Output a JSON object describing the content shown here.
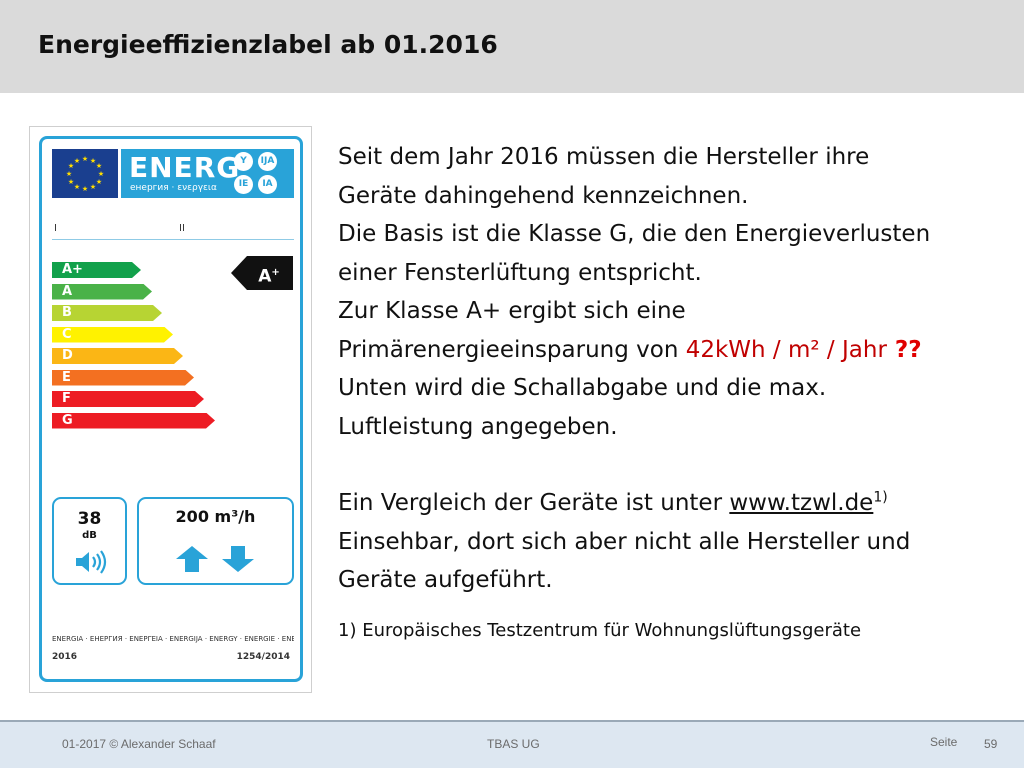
{
  "slide": {
    "title": "Energieeffizienzlabel ab 01.2016"
  },
  "label": {
    "energ_word": "ENERG",
    "energ_sub": "енергия · ενεργεια",
    "lang_codes": [
      "Y",
      "IJA",
      "IE",
      "IA"
    ],
    "supplier_i": "I",
    "supplier_ii": "II",
    "classes": [
      "A+",
      "A",
      "B",
      "C",
      "D",
      "E",
      "F",
      "G"
    ],
    "class_colors": [
      "#12a14b",
      "#4ab248",
      "#b7d433",
      "#fff200",
      "#fbb615",
      "#f37021",
      "#ed1c24",
      "#ed1c24"
    ],
    "indicator_letter": "A",
    "indicator_plus": "+",
    "sound_value": "38",
    "sound_unit": "dB",
    "airflow_value": "200",
    "airflow_unit": "m³/h",
    "footer_langs": "ENERGIA · ЕНЕРГИЯ · ΕΝΕΡΓΕΙΑ · ENERGIJA · ENERGY · ENERGIE · ENERGI",
    "footer_year": "2016",
    "footer_reg": "1254/2014"
  },
  "body": {
    "line1": "Seit dem Jahr 2016 müssen die Hersteller ihre",
    "line2": "Geräte dahingehend kennzeichnen.",
    "line3": "Die Basis ist die Klasse G, die den Energieverlusten",
    "line4": "einer Fensterlüftung entspricht.",
    "line5": "Zur Klasse  A+ ergibt sich eine",
    "line6_pre": "Primärenergieeinsparung von ",
    "line6_red": "42kWh / m² / Jahr",
    "line6_q": " ??",
    "line7": "Unten wird die Schallabgabe und die max.",
    "line8": "Luftleistung angegeben.",
    "line9_pre": "Ein Vergleich der Geräte ist unter ",
    "line9_link": "www.tzwl.de",
    "line9_sup": "1)",
    "line10": "Einsehbar, dort sich aber nicht alle Hersteller und",
    "line11": "Geräte aufgeführt."
  },
  "footnote": "1) Europäisches Testzentrum für Wohnungslüftungsgeräte",
  "footer": {
    "left": "01-2017 © Alexander Schaaf",
    "center": "TBAS UG",
    "seite_label": "Seite",
    "page_number": "59"
  }
}
